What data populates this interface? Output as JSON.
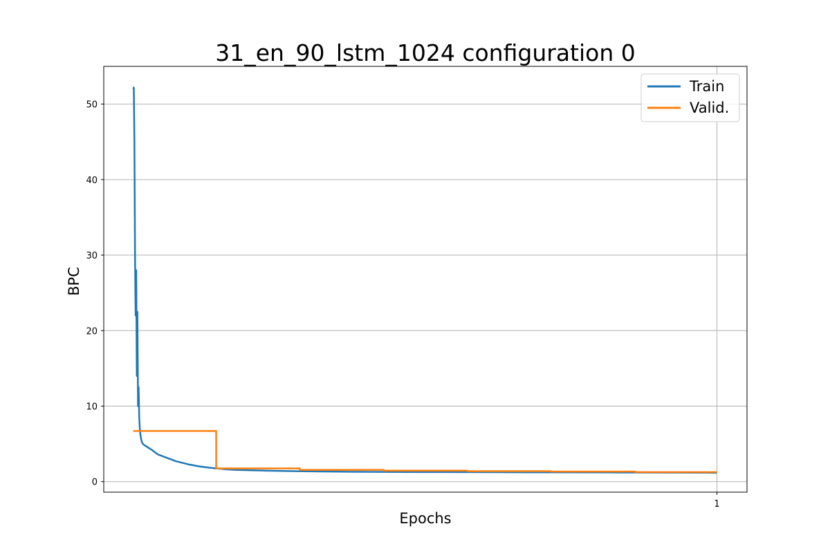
{
  "chart_data": {
    "type": "line",
    "title": "31_en_90_lstm_1024 configuration 0",
    "xlabel": "Epochs",
    "ylabel": "BPC",
    "xlim": [
      -0.02,
      1.05
    ],
    "ylim": [
      -1.4,
      55
    ],
    "xticks": [
      1
    ],
    "xtick_labels": [
      "1"
    ],
    "yticks": [
      0,
      10,
      20,
      30,
      40,
      50
    ],
    "ytick_labels": [
      "0",
      "10",
      "20",
      "30",
      "40",
      "50"
    ],
    "grid": true,
    "legend": {
      "placement": "top-right",
      "entries": [
        "Train",
        "Valid."
      ]
    },
    "series": [
      {
        "name": "Train",
        "color": "#1f77b4",
        "x": [
          0.029,
          0.03,
          0.031,
          0.032,
          0.033,
          0.034,
          0.035,
          0.036,
          0.037,
          0.038,
          0.039,
          0.04,
          0.041,
          0.043,
          0.045,
          0.048,
          0.052,
          0.056,
          0.06,
          0.065,
          0.07,
          0.08,
          0.09,
          0.1,
          0.12,
          0.14,
          0.16,
          0.18,
          0.2,
          0.25,
          0.3,
          0.4,
          0.5,
          0.6,
          0.7,
          0.8,
          0.9,
          1.0
        ],
        "y": [
          52.0,
          52.2,
          45.0,
          30.0,
          22.0,
          28.0,
          14.0,
          22.5,
          10.0,
          12.5,
          8.5,
          7.0,
          6.2,
          5.3,
          5.0,
          4.8,
          4.6,
          4.4,
          4.2,
          3.9,
          3.6,
          3.3,
          3.0,
          2.7,
          2.3,
          2.0,
          1.8,
          1.65,
          1.55,
          1.45,
          1.38,
          1.3,
          1.27,
          1.25,
          1.23,
          1.22,
          1.2,
          1.18
        ]
      },
      {
        "name": "Valid.",
        "color": "#ff7f0e",
        "x": [
          0.029,
          0.167,
          0.167,
          0.306,
          0.306,
          0.446,
          0.446,
          0.585,
          0.585,
          0.724,
          0.724,
          0.864,
          0.864,
          1.0
        ],
        "y": [
          6.7,
          6.7,
          1.75,
          1.75,
          1.55,
          1.55,
          1.45,
          1.45,
          1.38,
          1.38,
          1.33,
          1.33,
          1.25,
          1.25
        ]
      }
    ]
  }
}
